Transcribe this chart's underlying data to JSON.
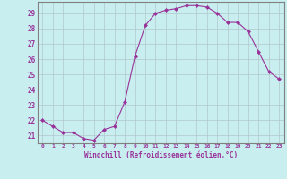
{
  "x": [
    0,
    1,
    2,
    3,
    4,
    5,
    6,
    7,
    8,
    9,
    10,
    11,
    12,
    13,
    14,
    15,
    16,
    17,
    18,
    19,
    20,
    21,
    22,
    23
  ],
  "y": [
    22.0,
    21.6,
    21.2,
    21.2,
    20.8,
    20.7,
    21.4,
    21.6,
    23.2,
    26.2,
    28.2,
    29.0,
    29.2,
    29.3,
    29.5,
    29.5,
    29.4,
    29.0,
    28.4,
    28.4,
    27.8,
    26.5,
    25.2,
    24.7
  ],
  "line_color": "#993399",
  "marker_color": "#993399",
  "bg_color": "#c8eef0",
  "grid_color": "#b0c8cc",
  "axis_color": "#993399",
  "spine_color": "#808080",
  "xlabel": "Windchill (Refroidissement éolien,°C)",
  "ylim": [
    20.5,
    29.75
  ],
  "xlim": [
    -0.5,
    23.5
  ],
  "yticks": [
    21,
    22,
    23,
    24,
    25,
    26,
    27,
    28,
    29
  ],
  "xticks": [
    0,
    1,
    2,
    3,
    4,
    5,
    6,
    7,
    8,
    9,
    10,
    11,
    12,
    13,
    14,
    15,
    16,
    17,
    18,
    19,
    20,
    21,
    22,
    23
  ]
}
